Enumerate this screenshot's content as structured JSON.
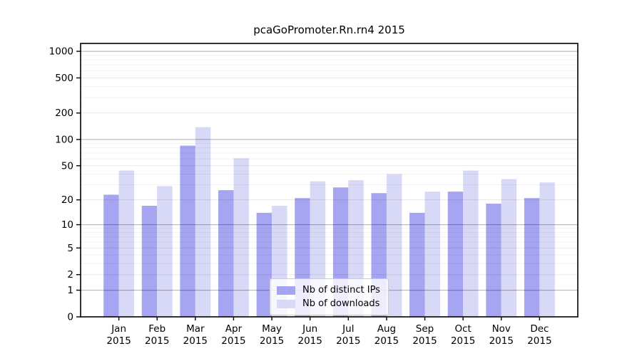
{
  "chart_data": {
    "type": "bar",
    "title": "pcaGoPromoter.Rn.rn4 2015",
    "y_scale": "log1p",
    "grid": true,
    "categories": [
      "Jan",
      "Feb",
      "Mar",
      "Apr",
      "May",
      "Jun",
      "Jul",
      "Aug",
      "Sep",
      "Oct",
      "Nov",
      "Dec"
    ],
    "x_tick_year": "2015",
    "y_ticks": [
      0,
      1,
      2,
      5,
      10,
      20,
      50,
      100,
      200,
      500,
      1000
    ],
    "ylim": [
      0,
      1228
    ],
    "legend_position": "lower-center-inside",
    "series": [
      {
        "name": "Nb of distinct IPs",
        "color": "#a5a5f2",
        "values": [
          23,
          17,
          85,
          26,
          14,
          21,
          28,
          24,
          14,
          25,
          18,
          21
        ]
      },
      {
        "name": "Nb of downloads",
        "color": "#d8d8f7",
        "values": [
          44,
          29,
          138,
          61,
          17,
          33,
          34,
          40,
          25,
          44,
          35,
          32
        ]
      }
    ],
    "colors": {
      "major_gridline": "#b0b0b0",
      "minor_gridline": "#ececec",
      "axis": "#000000"
    }
  }
}
